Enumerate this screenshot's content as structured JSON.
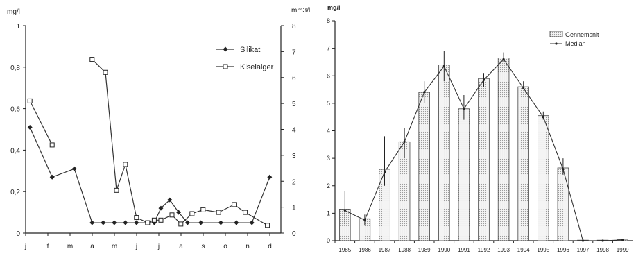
{
  "chart_data": [
    {
      "type": "line",
      "left_unit": "mg/l",
      "right_unit": "mm3/l",
      "ylim_left": [
        0,
        1
      ],
      "ylim_right": [
        0,
        8
      ],
      "left_ticks": [
        "0",
        "0,2",
        "0,4",
        "0,6",
        "0,8",
        "1"
      ],
      "right_ticks": [
        "0",
        "1",
        "2",
        "3",
        "4",
        "5",
        "6",
        "7",
        "8"
      ],
      "x_ticks": [
        "j",
        "f",
        "m",
        "a",
        "m",
        "j",
        "j",
        "a",
        "s",
        "o",
        "n",
        "d"
      ],
      "legend": [
        "Silikat",
        "Kiselalger"
      ],
      "legend_position": "top-right",
      "series": [
        {
          "name": "Silikat",
          "axis": "left",
          "marker": "diamond",
          "points": [
            [
              0.1,
              0.51
            ],
            [
              1.1,
              0.27
            ],
            [
              2.1,
              0.31
            ],
            [
              2.9,
              0.05
            ],
            [
              3.4,
              0.05
            ],
            [
              3.9,
              0.05
            ],
            [
              4.4,
              0.05
            ],
            [
              4.9,
              0.05
            ],
            [
              5.4,
              0.05
            ],
            [
              5.7,
              0.05
            ],
            [
              6.0,
              0.12
            ],
            [
              6.4,
              0.16
            ],
            [
              6.8,
              0.1
            ],
            [
              7.2,
              0.05
            ],
            [
              7.8,
              0.05
            ],
            [
              8.7,
              0.05
            ],
            [
              9.4,
              0.05
            ],
            [
              10.1,
              0.05
            ],
            [
              10.9,
              0.27
            ]
          ]
        },
        {
          "name": "Kiselalger",
          "axis": "right",
          "marker": "square",
          "segments": [
            [
              [
                0.1,
                5.1
              ],
              [
                1.1,
                3.4
              ]
            ],
            [
              [
                2.9,
                6.7
              ],
              [
                3.5,
                6.2
              ],
              [
                4.0,
                1.65
              ],
              [
                4.4,
                2.65
              ],
              [
                4.9,
                0.6
              ],
              [
                5.4,
                0.4
              ],
              [
                5.7,
                0.5
              ],
              [
                6.0,
                0.5
              ],
              [
                6.5,
                0.7
              ],
              [
                6.9,
                0.35
              ],
              [
                7.4,
                0.75
              ],
              [
                7.9,
                0.9
              ],
              [
                8.6,
                0.8
              ],
              [
                9.3,
                1.1
              ],
              [
                9.8,
                0.8
              ],
              [
                10.8,
                0.3
              ]
            ]
          ]
        }
      ]
    },
    {
      "type": "bar",
      "unit": "mg/l",
      "ylim": [
        0,
        8
      ],
      "y_ticks": [
        "0",
        "1",
        "2",
        "3",
        "4",
        "5",
        "6",
        "7",
        "8"
      ],
      "categories": [
        "1985",
        "1986",
        "1987",
        "1988",
        "1989",
        "1990",
        "1991",
        "1992",
        "1993",
        "1994",
        "1995",
        "1996",
        "1997",
        "1998",
        "1999"
      ],
      "legend": [
        "Gennemsnit",
        "Median"
      ],
      "legend_position": "top-right",
      "series": [
        {
          "name": "Gennemsnit",
          "kind": "bar",
          "values": [
            1.15,
            0.8,
            2.6,
            3.6,
            5.4,
            6.4,
            4.8,
            5.9,
            6.65,
            5.6,
            4.55,
            2.65,
            0.02,
            0.02,
            0.05
          ]
        },
        {
          "name": "Median",
          "kind": "line",
          "values": [
            1.1,
            0.75,
            2.5,
            3.6,
            5.4,
            6.35,
            4.8,
            5.85,
            6.6,
            5.55,
            4.5,
            2.6,
            0.0,
            0.0,
            0.03
          ]
        }
      ],
      "error_bars": [
        [
          0.6,
          1.8
        ],
        [
          0.55,
          0.95
        ],
        [
          2.0,
          3.8
        ],
        [
          3.0,
          4.1
        ],
        [
          5.0,
          5.8
        ],
        [
          5.8,
          6.9
        ],
        [
          4.4,
          5.3
        ],
        [
          5.6,
          6.1
        ],
        [
          6.5,
          6.85
        ],
        [
          5.5,
          5.8
        ],
        [
          4.4,
          4.7
        ],
        [
          2.4,
          3.0
        ]
      ]
    }
  ]
}
